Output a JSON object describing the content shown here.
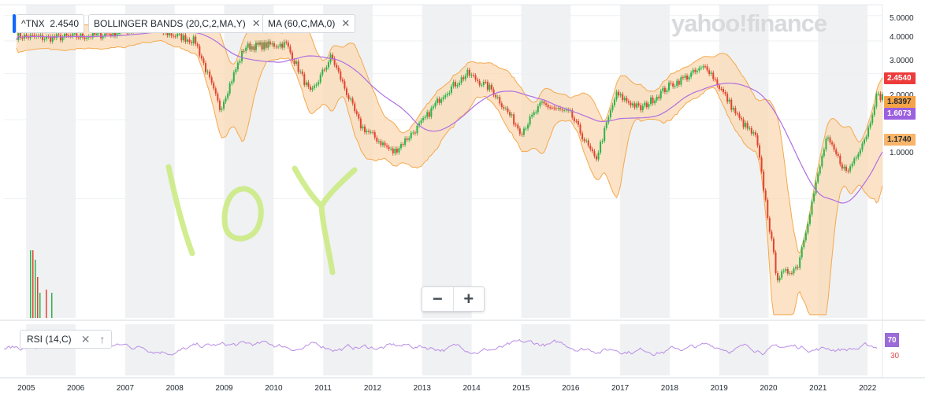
{
  "header": {
    "symbol": "^TNX",
    "price": "2.4540",
    "indicators": [
      {
        "label": "BOLLINGER BANDS (20,C,2,MA,Y)",
        "close": "✕"
      },
      {
        "label": "MA (60,C,MA,0)",
        "close": "✕"
      }
    ],
    "logo": "yahoo!finance"
  },
  "overlay_text": "10Y",
  "zoom": {
    "minus": "−",
    "plus": "+"
  },
  "rsi": {
    "label": "RSI (14,C)",
    "close": "✕",
    "up": "↑",
    "current": "70",
    "level_low": "30"
  },
  "colors": {
    "band_fill": "#fbd9b4",
    "band_line": "#f4a94e",
    "ma_line": "#b06fe0",
    "up": "#2bb34a",
    "down": "#e0442f",
    "rsi_line": "#b98ee6",
    "shade": "#f0f1f3",
    "price_tag": "#ec3b3b",
    "upper_tag": "#f5a347",
    "ma_tag": "#9b5fe0",
    "lower_tag": "#f8b56a"
  },
  "chart_data": {
    "type": "line",
    "series": [
      {
        "name": "^TNX",
        "x": [
          "2004-09",
          "2005-06",
          "2006-06",
          "2007-06",
          "2008-06",
          "2008-12",
          "2009-06",
          "2010-04",
          "2010-10",
          "2011-03",
          "2011-10",
          "2012-06",
          "2013-01",
          "2013-06",
          "2013-12",
          "2014-06",
          "2015-01",
          "2015-06",
          "2016-01",
          "2016-07",
          "2016-12",
          "2017-06",
          "2018-01",
          "2018-10",
          "2019-06",
          "2019-10",
          "2020-03",
          "2020-08",
          "2021-03",
          "2021-08",
          "2022-01",
          "2022-03"
        ],
        "values": [
          4.2,
          4.1,
          4.2,
          4.5,
          4.0,
          2.2,
          3.8,
          3.9,
          2.5,
          3.5,
          1.9,
          1.5,
          1.95,
          2.5,
          3.0,
          2.6,
          1.8,
          2.3,
          2.1,
          1.4,
          2.5,
          2.2,
          2.7,
          3.2,
          2.0,
          1.7,
          0.5,
          0.55,
          1.7,
          1.25,
          1.8,
          2.454
        ]
      }
    ],
    "y_ticks": [
      "5.0000",
      "4.0000",
      "3.0000",
      "2.0000",
      "1.0000"
    ],
    "x_ticks": [
      "2005",
      "2006",
      "2007",
      "2008",
      "2009",
      "2010",
      "2011",
      "2012",
      "2013",
      "2014",
      "2015",
      "2016",
      "2017",
      "2018",
      "2019",
      "2020",
      "2021",
      "2022"
    ],
    "value_tags": {
      "last": "2.4540",
      "upper_band": "1.8397",
      "ma": "1.6073",
      "lower_band": "1.1740"
    },
    "scale": "log",
    "ylim": [
      0.35,
      5.5
    ]
  }
}
